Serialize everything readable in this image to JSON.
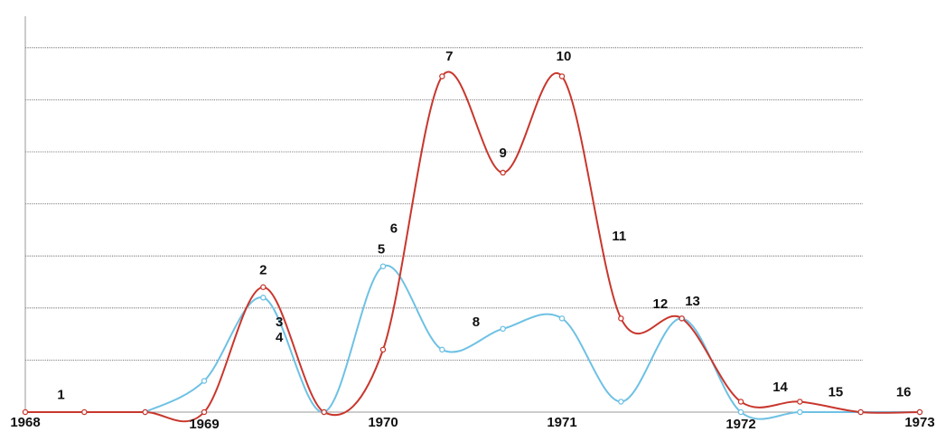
{
  "chart_data": {
    "type": "line",
    "xlim": [
      1968,
      1973
    ],
    "ylim": [
      0,
      7.5
    ],
    "grid": true,
    "x_ticks": [
      {
        "label": "1968",
        "x": 1968
      },
      {
        "label": "1969",
        "x": 1969
      },
      {
        "label": "1970",
        "x": 1970
      },
      {
        "label": "1971",
        "x": 1971
      },
      {
        "label": "1972",
        "x": 1972
      },
      {
        "label": "1973",
        "x": 1973
      }
    ],
    "y_gridlines": [
      1,
      2,
      3,
      4,
      5,
      6,
      7
    ],
    "series": [
      {
        "color": "#c8372d",
        "x": [
          1968,
          1968.33,
          1968.67,
          1969,
          1969.33,
          1969.67,
          1970,
          1970.33,
          1970.67,
          1971,
          1971.33,
          1971.67,
          1972,
          1972.33,
          1972.67,
          1973
        ],
        "y": [
          0,
          0,
          0,
          0,
          2.4,
          0,
          1.2,
          6.45,
          4.6,
          6.45,
          1.8,
          1.8,
          0.2,
          0.2,
          0,
          0
        ]
      },
      {
        "color": "#6ec1e4",
        "x": [
          1968.67,
          1969,
          1969.33,
          1969.67,
          1970,
          1970.33,
          1970.67,
          1971,
          1971.33,
          1971.67,
          1972,
          1972.33,
          1972.67,
          1973
        ],
        "y": [
          0,
          0.6,
          2.2,
          0,
          2.8,
          1.2,
          1.6,
          1.8,
          0.2,
          1.8,
          0,
          0,
          0,
          0
        ]
      }
    ],
    "annotations": [
      {
        "text": "1",
        "x": 1968.2,
        "y": 0.25
      },
      {
        "text": "2",
        "x": 1969.33,
        "y": 2.65
      },
      {
        "text": "3",
        "x": 1969.42,
        "y": 1.65
      },
      {
        "text": "4",
        "x": 1969.42,
        "y": 1.35
      },
      {
        "text": "5",
        "x": 1969.99,
        "y": 3.05
      },
      {
        "text": "6",
        "x": 1970.06,
        "y": 3.45
      },
      {
        "text": "7",
        "x": 1970.37,
        "y": 6.75
      },
      {
        "text": "8",
        "x": 1970.52,
        "y": 1.65
      },
      {
        "text": "9",
        "x": 1970.67,
        "y": 4.9
      },
      {
        "text": "10",
        "x": 1971.01,
        "y": 6.75
      },
      {
        "text": "11",
        "x": 1971.32,
        "y": 3.3
      },
      {
        "text": "12",
        "x": 1971.55,
        "y": 2.0
      },
      {
        "text": "13",
        "x": 1971.73,
        "y": 2.05
      },
      {
        "text": "14",
        "x": 1972.22,
        "y": 0.4
      },
      {
        "text": "15",
        "x": 1972.53,
        "y": 0.3
      },
      {
        "text": "16",
        "x": 1972.91,
        "y": 0.3
      }
    ]
  }
}
